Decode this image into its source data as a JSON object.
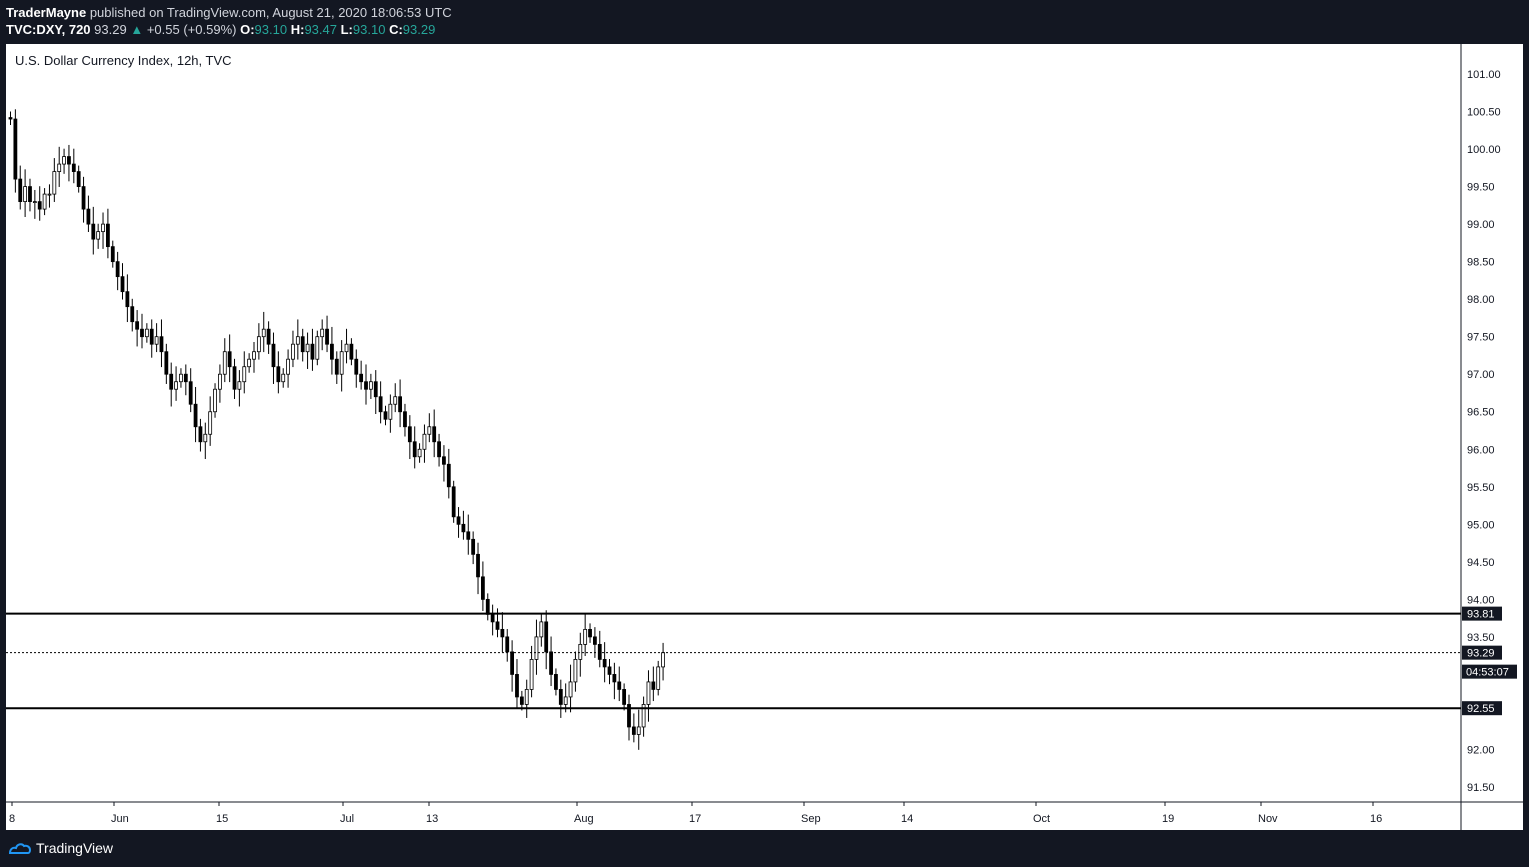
{
  "header": {
    "author": "TraderMayne",
    "published_text": "published on TradingView.com, August 21, 2020 18:06:53 UTC",
    "symbol": "TVC:DXY, 720",
    "last": "93.29",
    "change": "+0.55 (+0.59%)",
    "open_label": "O:",
    "open": "93.10",
    "high_label": "H:",
    "high": "93.47",
    "low_label": "L:",
    "low": "93.10",
    "close_label": "C:",
    "close": "93.29"
  },
  "footer": {
    "brand": "TradingView"
  },
  "colors": {
    "background": "#131722",
    "chart_bg": "#ffffff",
    "candle": "#000000",
    "up_text": "#26a69a"
  },
  "chart_data": {
    "type": "candlestick",
    "title": "U.S. Dollar Currency Index, 12h, TVC",
    "ylim": [
      91.3,
      101.4
    ],
    "y_ticks": [
      "101.00",
      "100.50",
      "100.00",
      "99.50",
      "99.00",
      "98.50",
      "98.00",
      "97.50",
      "97.00",
      "96.50",
      "96.00",
      "95.50",
      "95.00",
      "94.50",
      "94.00",
      "93.50",
      "92.00",
      "91.50"
    ],
    "x_ticks": [
      "8",
      "Jun",
      "15",
      "Jul",
      "13",
      "Aug",
      "17",
      "Sep",
      "14",
      "Oct",
      "19",
      "Nov",
      "16"
    ],
    "horizontal_lines": [
      {
        "value": 93.81,
        "label": "93.81",
        "style": "solid"
      },
      {
        "value": 92.55,
        "label": "92.55",
        "style": "solid"
      },
      {
        "value": 93.29,
        "label": "93.29",
        "style": "dotted"
      }
    ],
    "countdown": "04:53:07",
    "closes": [
      100.4,
      99.6,
      99.3,
      99.5,
      99.3,
      99.3,
      99.2,
      99.4,
      99.4,
      99.7,
      99.8,
      99.9,
      99.8,
      99.7,
      99.5,
      99.2,
      99.0,
      98.8,
      98.9,
      99.0,
      98.7,
      98.5,
      98.3,
      98.1,
      97.9,
      97.7,
      97.6,
      97.5,
      97.6,
      97.4,
      97.5,
      97.3,
      97.0,
      96.8,
      96.9,
      97.0,
      96.9,
      96.6,
      96.3,
      96.1,
      96.2,
      96.5,
      96.8,
      97.0,
      97.3,
      97.1,
      96.8,
      96.9,
      97.1,
      97.2,
      97.3,
      97.5,
      97.6,
      97.4,
      97.1,
      96.9,
      97.0,
      97.2,
      97.4,
      97.5,
      97.3,
      97.4,
      97.2,
      97.5,
      97.6,
      97.4,
      97.2,
      97.0,
      97.3,
      97.4,
      97.2,
      97.0,
      96.9,
      96.8,
      96.9,
      96.7,
      96.5,
      96.4,
      96.6,
      96.7,
      96.5,
      96.3,
      96.1,
      95.9,
      96.0,
      96.2,
      96.3,
      96.1,
      95.9,
      95.8,
      95.5,
      95.1,
      95.0,
      94.9,
      94.8,
      94.6,
      94.3,
      94.0,
      93.8,
      93.7,
      93.6,
      93.5,
      93.3,
      93.0,
      92.7,
      92.6,
      92.8,
      93.2,
      93.5,
      93.7,
      93.3,
      93.0,
      92.8,
      92.6,
      92.7,
      92.9,
      93.2,
      93.4,
      93.6,
      93.5,
      93.4,
      93.2,
      93.1,
      93.0,
      92.9,
      92.8,
      92.6,
      92.3,
      92.2,
      92.3,
      92.6,
      92.9,
      92.8,
      93.1,
      93.29
    ]
  }
}
